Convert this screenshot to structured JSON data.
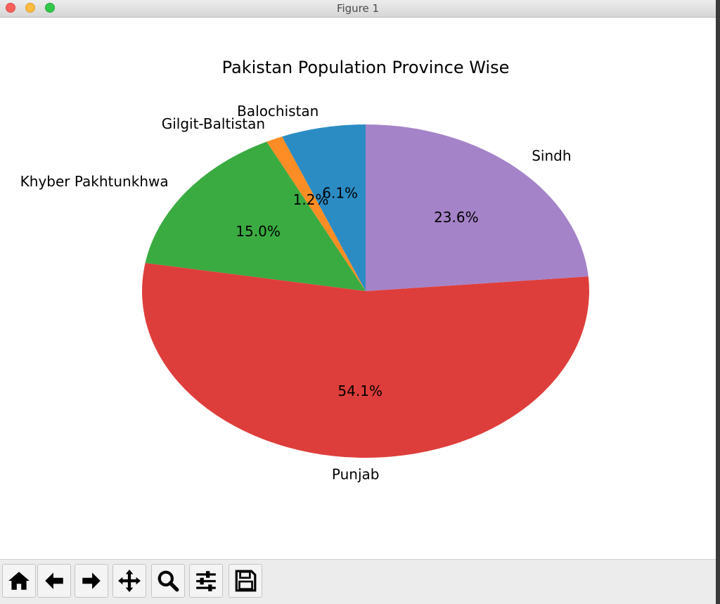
{
  "window": {
    "title": "Figure 1"
  },
  "toolbar": {
    "buttons": [
      {
        "name": "home-button",
        "icon": "home-icon"
      },
      {
        "name": "back-button",
        "icon": "arrow-left-icon"
      },
      {
        "name": "forward-button",
        "icon": "arrow-right-icon"
      },
      {
        "name": "pan-button",
        "icon": "move-icon"
      },
      {
        "name": "zoom-button",
        "icon": "magnifier-icon"
      },
      {
        "name": "configure-subplots-button",
        "icon": "sliders-icon"
      },
      {
        "name": "save-button",
        "icon": "floppy-disk-icon"
      }
    ]
  },
  "chart_data": {
    "type": "pie",
    "title": "Pakistan Population Province Wise",
    "start_angle_deg": 90,
    "direction": "counterclockwise",
    "slices": [
      {
        "label": "Balochistan",
        "value": 6.1,
        "pct_label": "6.1%",
        "color": "#2b8cc4"
      },
      {
        "label": "Gilgit-Baltistan",
        "value": 1.2,
        "pct_label": "1.2%",
        "color": "#fd8d24"
      },
      {
        "label": "Khyber Pakhtunkhwa",
        "value": 15.0,
        "pct_label": "15.0%",
        "color": "#3aab41"
      },
      {
        "label": "Punjab",
        "value": 54.1,
        "pct_label": "54.1%",
        "color": "#de3e3b"
      },
      {
        "label": "Sindh",
        "value": 23.6,
        "pct_label": "23.6%",
        "color": "#a583c8"
      }
    ]
  }
}
